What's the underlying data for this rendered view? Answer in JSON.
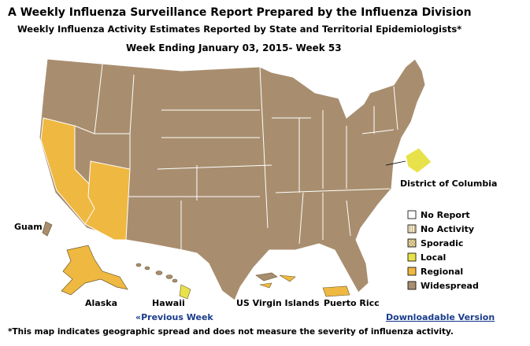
{
  "header": {
    "title": "A Weekly Influenza Surveillance Report Prepared by the Influenza Division",
    "subtitle": "Weekly Influenza Activity Estimates Reported by State and Territorial Epidemiologists*",
    "week": "Week Ending January 03, 2015- Week 53"
  },
  "map_labels": {
    "dc": "District of Columbia",
    "guam": "Guam",
    "alaska": "Alaska",
    "hawaii": "Hawaii",
    "usvi": "US Virgin Islands",
    "pr": "Puerto Ricc"
  },
  "legend": [
    {
      "label": "No Report",
      "color": "#ffffff"
    },
    {
      "label": "No Activity",
      "color": "#f3ecd2"
    },
    {
      "label": "Sporadic",
      "color": "#efe2b0"
    },
    {
      "label": "Local",
      "color": "#e8e24a"
    },
    {
      "label": "Regional",
      "color": "#efb840"
    },
    {
      "label": "Widespread",
      "color": "#a88e6f"
    }
  ],
  "links": {
    "previous": "«Previous Week",
    "download": "Downloadable Version"
  },
  "footnote": "*This map indicates geographic spread and does not measure the severity of influenza activity."
}
